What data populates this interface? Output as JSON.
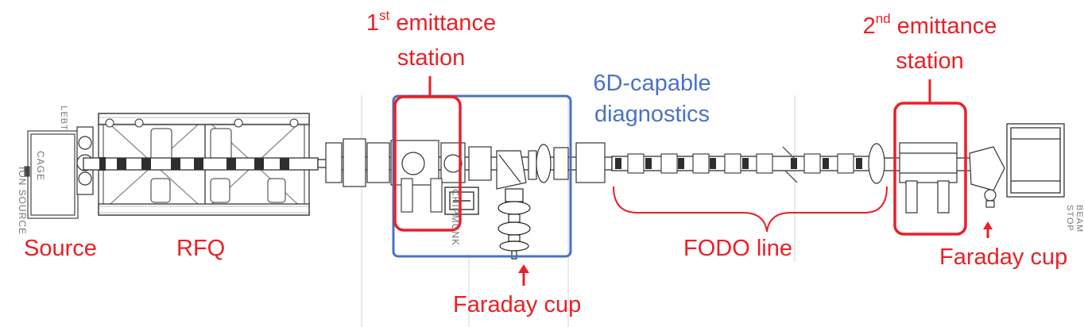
{
  "labels": {
    "emittance_1_num": "1",
    "emittance_1_sup": "st",
    "emittance_1_rest": " emittance",
    "emittance_1_line2": "station",
    "emittance_2_num": "2",
    "emittance_2_sup": "nd",
    "emittance_2_rest": " emittance",
    "emittance_2_line2": "station",
    "diagnostics_line1": "6D-capable",
    "diagnostics_line2": "diagnostics",
    "source": "Source",
    "rfq": "RFQ",
    "fodo": "FODO line",
    "faraday_cup_mid": "Faraday cup",
    "faraday_cup_right": "Faraday cup"
  },
  "drawing_labels": {
    "lebt": "LEBT",
    "ion_source_cage_1": "ION SOURCE",
    "ion_source_cage_2": "CAGE",
    "chipmunk": "CHIPMUNK",
    "beam_stop_1": "BEAM",
    "beam_stop_2": "STOP"
  },
  "colors": {
    "red": "#ea2027",
    "blue": "#4a72c4",
    "drawing": "#3a3a3a"
  }
}
